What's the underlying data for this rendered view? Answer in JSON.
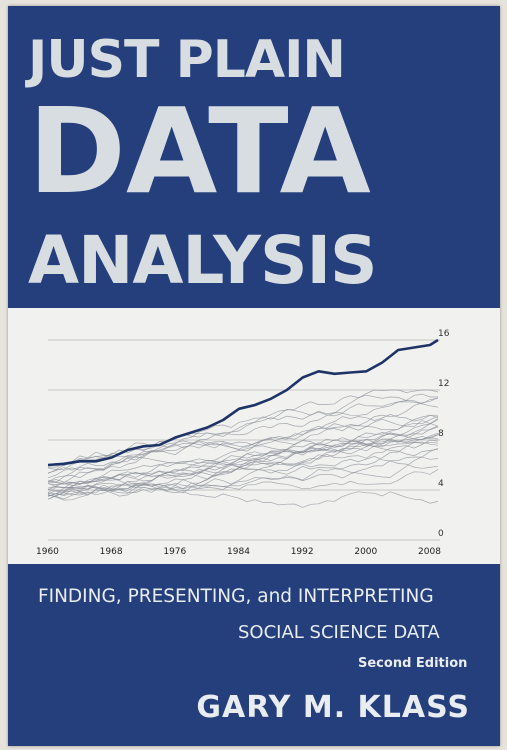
{
  "cover": {
    "title_line1": "JUST PLAIN",
    "title_line2": "DATA",
    "title_line3": "ANALYSIS",
    "subtitle_line1": "FINDING, PRESENTING, and INTERPRETING",
    "subtitle_line2": "SOCIAL SCIENCE DATA",
    "edition": "Second Edition",
    "author": "GARY M. KLASS",
    "colors": {
      "background": "#243f7c",
      "title_text": "#d8dde2",
      "chart_background": "#f1f1ef",
      "highlight_line": "#1f3466",
      "thin_lines": "#8a8f98"
    }
  },
  "chart": {
    "x_ticks": [
      "1960",
      "1968",
      "1976",
      "1984",
      "1992",
      "2000",
      "2008"
    ],
    "y_ticks": [
      "0",
      "4",
      "8",
      "12",
      "16"
    ],
    "highlight_series": [
      [
        1960,
        6.0
      ],
      [
        1962,
        6.1
      ],
      [
        1964,
        6.3
      ],
      [
        1966,
        6.3
      ],
      [
        1968,
        6.6
      ],
      [
        1970,
        7.2
      ],
      [
        1972,
        7.5
      ],
      [
        1974,
        7.6
      ],
      [
        1976,
        8.2
      ],
      [
        1978,
        8.6
      ],
      [
        1980,
        9.0
      ],
      [
        1982,
        9.6
      ],
      [
        1984,
        10.5
      ],
      [
        1986,
        10.8
      ],
      [
        1988,
        11.3
      ],
      [
        1990,
        12.0
      ],
      [
        1992,
        13.0
      ],
      [
        1994,
        13.5
      ],
      [
        1996,
        13.3
      ],
      [
        1998,
        13.4
      ],
      [
        2000,
        13.5
      ],
      [
        2002,
        14.2
      ],
      [
        2004,
        15.2
      ],
      [
        2006,
        15.4
      ],
      [
        2008,
        15.6
      ],
      [
        2009,
        16.0
      ]
    ]
  }
}
